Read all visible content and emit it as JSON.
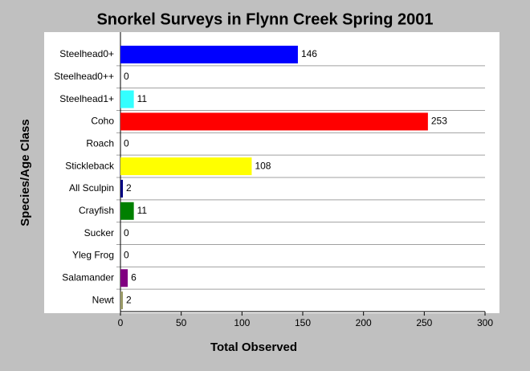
{
  "chart_data": {
    "type": "bar",
    "orientation": "horizontal",
    "title": "Snorkel Surveys in Flynn Creek Spring 2001",
    "x_label": "Total Observed",
    "y_label": "Species/Age Class",
    "categories": [
      "Steelhead0+",
      "Steelhead0++",
      "Steelhead1+",
      "Coho",
      "Roach",
      "Stickleback",
      "All Sculpin",
      "Crayfish",
      "Sucker",
      "Yleg Frog",
      "Salamander",
      "Newt"
    ],
    "values": [
      146,
      0,
      11,
      253,
      0,
      108,
      2,
      11,
      0,
      0,
      6,
      2
    ],
    "colors": [
      "#0000ff",
      null,
      "#33ffff",
      "#ff0000",
      null,
      "#ffff00",
      "#000080",
      "#008000",
      null,
      null,
      "#800080",
      "#999966"
    ],
    "xlim": [
      0,
      300
    ],
    "xticks": [
      0,
      50,
      100,
      150,
      200,
      250,
      300
    ]
  }
}
